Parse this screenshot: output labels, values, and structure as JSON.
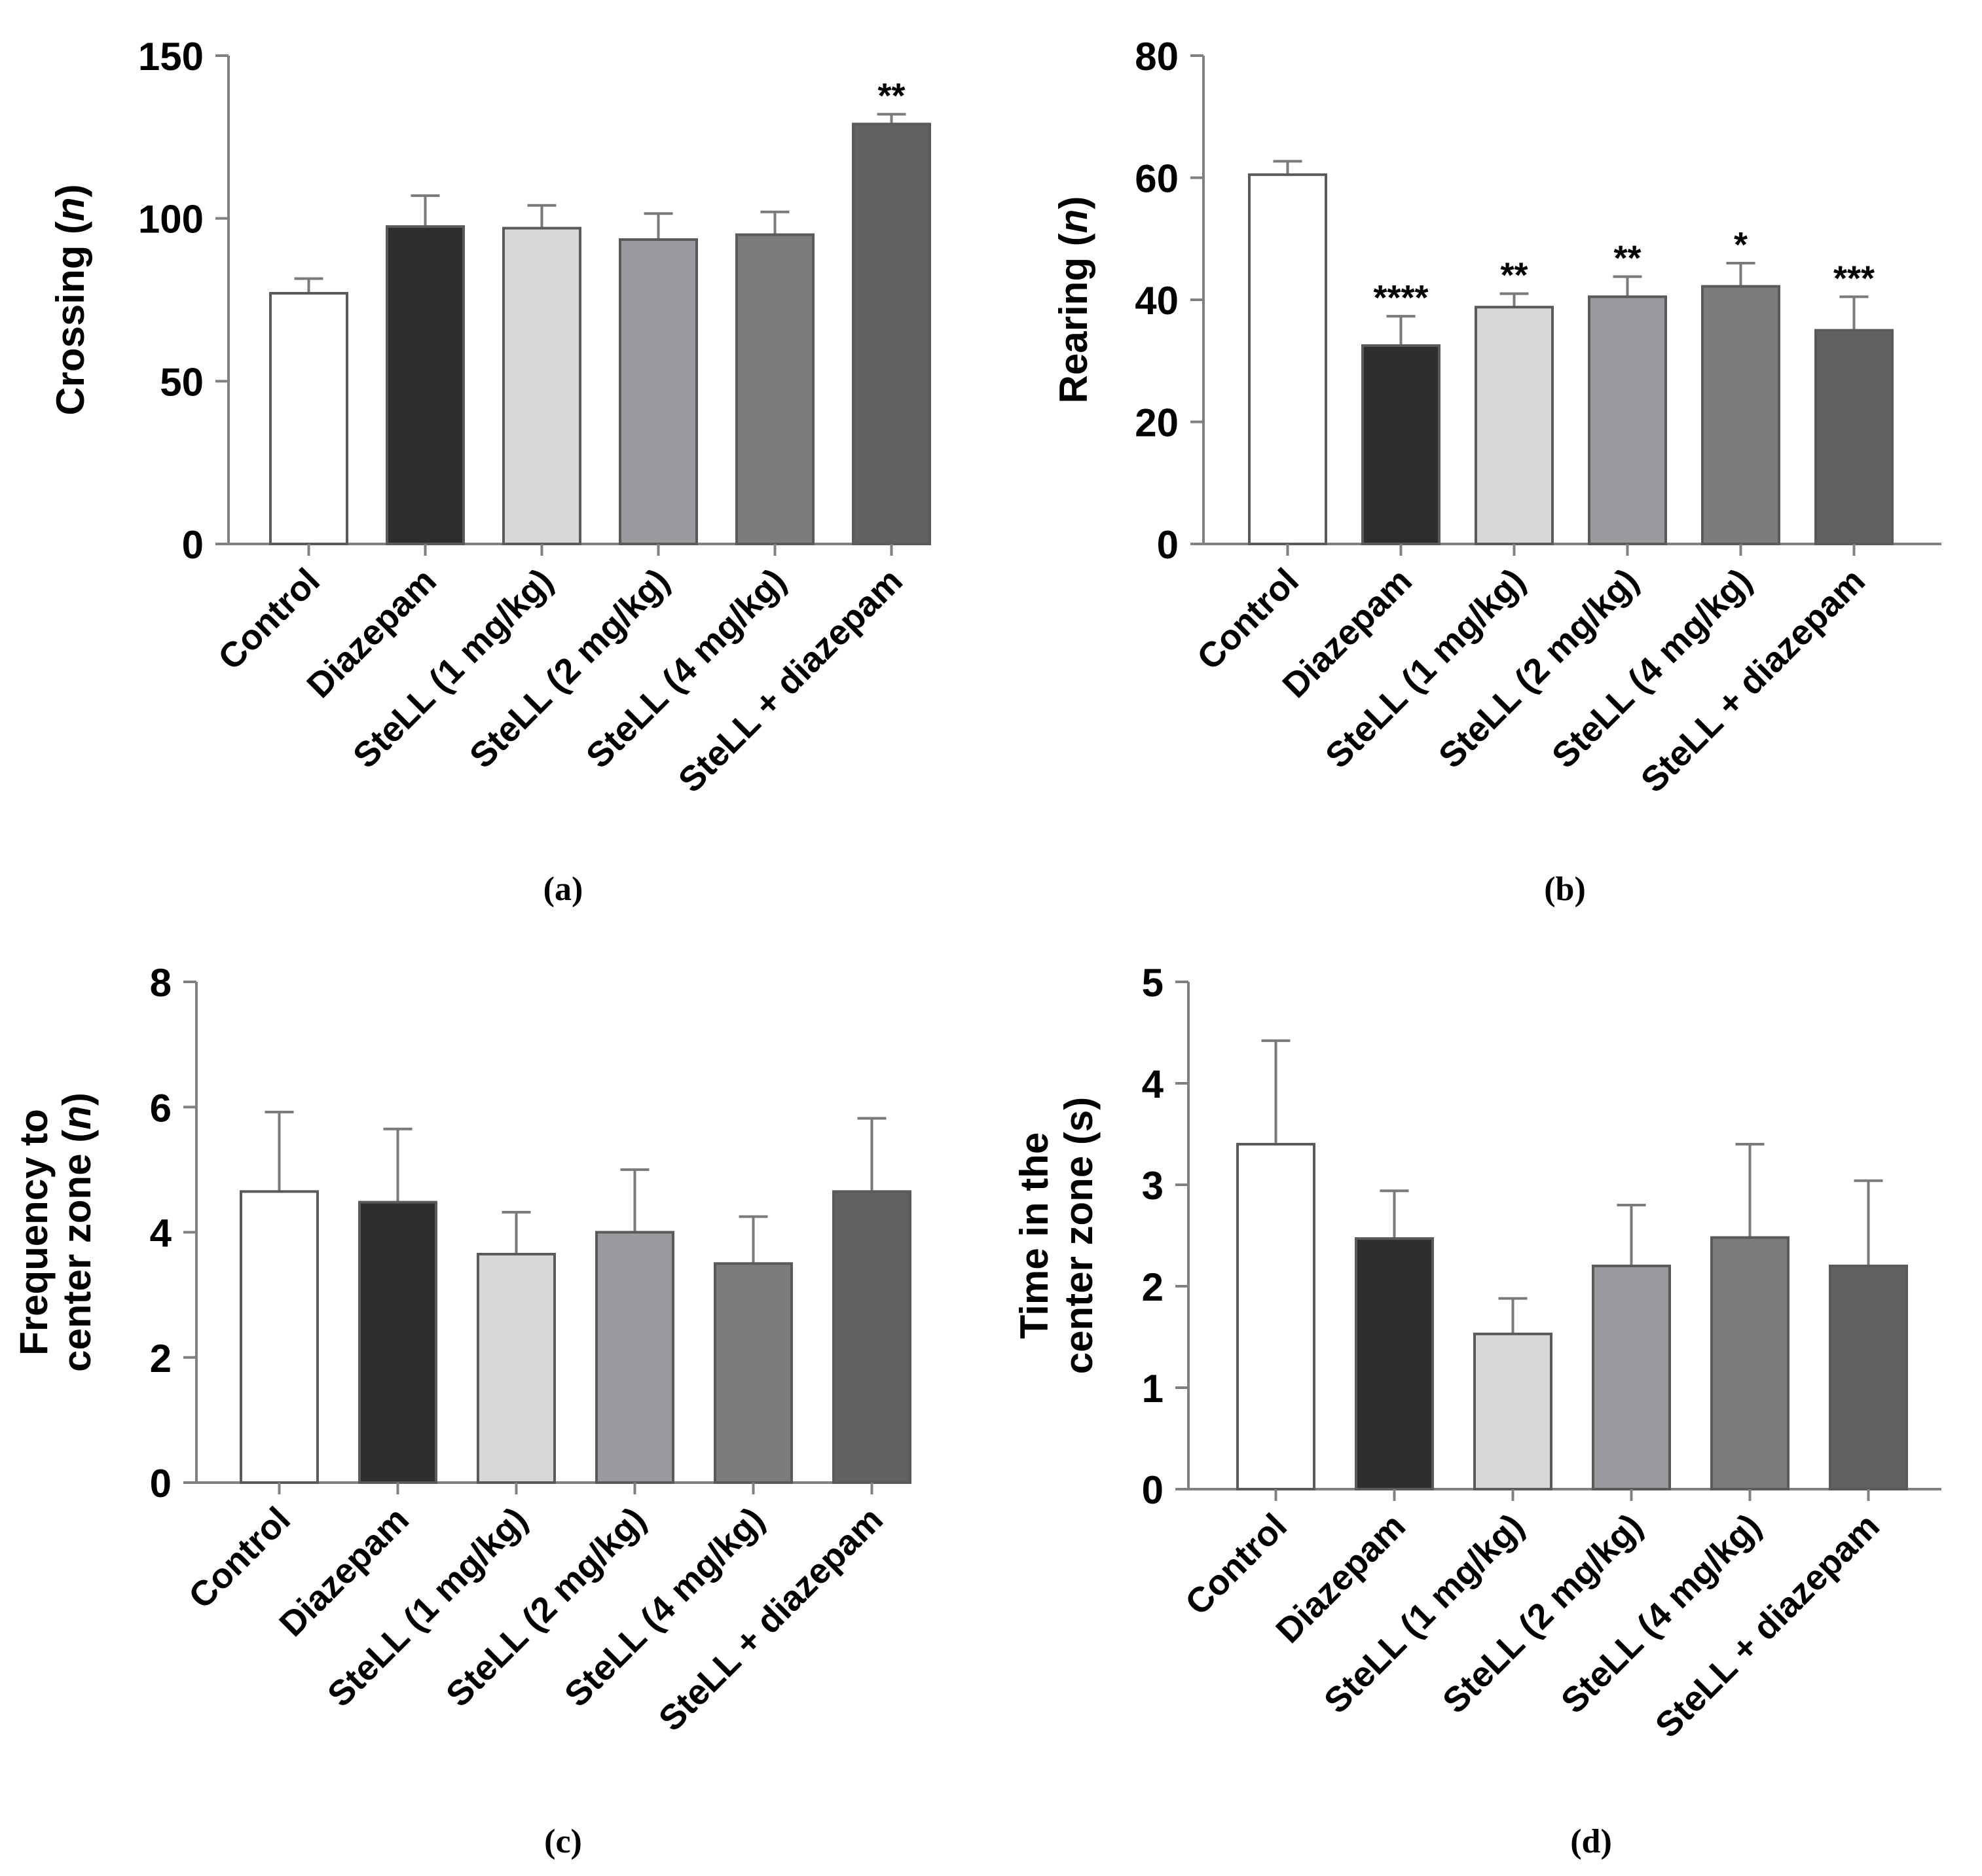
{
  "chart_data": [
    {
      "type": "bar",
      "panel_label": "(a)",
      "ylabel": "Crossing",
      "ylabel_unit": "n",
      "ylim": [
        0,
        150
      ],
      "yticks": [
        "0",
        "50",
        "100",
        "150"
      ],
      "categories": [
        "Control",
        "Diazepam",
        "SteLL (1 mg/kg)",
        "SteLL (2 mg/kg)",
        "SteLL (4 mg/kg)",
        "SteLL + diazepam"
      ],
      "values": [
        77,
        97.5,
        97,
        93.5,
        95,
        129
      ],
      "errors": [
        4.5,
        9.5,
        7,
        8,
        7,
        3
      ],
      "significance": [
        "",
        "",
        "",
        "",
        "",
        "**"
      ],
      "colors": [
        "#ffffff",
        "#2e2e2e",
        "#d8d8d8",
        "#9a9a9e",
        "#7c7c7c",
        "#616161"
      ]
    },
    {
      "type": "bar",
      "panel_label": "(b)",
      "ylabel": "Rearing",
      "ylabel_unit": "n",
      "ylim": [
        0,
        80
      ],
      "yticks": [
        "0",
        "20",
        "40",
        "60",
        "80"
      ],
      "categories": [
        "Control",
        "Diazepam",
        "SteLL (1 mg/kg)",
        "SteLL (2 mg/kg)",
        "SteLL (4 mg/kg)",
        "SteLL + diazepam"
      ],
      "values": [
        60.5,
        32.5,
        38.8,
        40.5,
        42.2,
        35
      ],
      "errors": [
        2.2,
        4.8,
        2.2,
        3.3,
        3.8,
        5.5
      ],
      "significance": [
        "",
        "****",
        "**",
        "**",
        "*",
        "***"
      ],
      "colors": [
        "#ffffff",
        "#2e2e2e",
        "#d8d8d8",
        "#9a9a9e",
        "#7c7c7c",
        "#616161"
      ]
    },
    {
      "type": "bar",
      "panel_label": "(c)",
      "ylabel_line1": "Frequency to",
      "ylabel_line2": "center zone",
      "ylabel_unit": "n",
      "ylim": [
        0,
        8
      ],
      "yticks": [
        "0",
        "2",
        "4",
        "6",
        "8"
      ],
      "categories": [
        "Control",
        "Diazepam",
        "SteLL (1 mg/kg)",
        "SteLL (2 mg/kg)",
        "SteLL (4 mg/kg)",
        "SteLL + diazepam"
      ],
      "values": [
        4.65,
        4.48,
        3.65,
        4.0,
        3.5,
        4.65
      ],
      "errors": [
        1.27,
        1.17,
        0.67,
        1.0,
        0.75,
        1.17
      ],
      "significance": [
        "",
        "",
        "",
        "",
        "",
        ""
      ],
      "colors": [
        "#ffffff",
        "#2e2e2e",
        "#d8d8d8",
        "#9a9a9e",
        "#7c7c7c",
        "#616161"
      ]
    },
    {
      "type": "bar",
      "panel_label": "(d)",
      "ylabel_line1": "Time in the",
      "ylabel_line2": "center zone (s)",
      "ylim": [
        0,
        5
      ],
      "yticks": [
        "0",
        "1",
        "2",
        "3",
        "4",
        "5"
      ],
      "categories": [
        "Control",
        "Diazepam",
        "SteLL (1 mg/kg)",
        "SteLL (2 mg/kg)",
        "SteLL (4 mg/kg)",
        "SteLL + diazepam"
      ],
      "values": [
        3.4,
        2.47,
        1.53,
        2.2,
        2.48,
        2.2
      ],
      "errors": [
        1.02,
        0.47,
        0.35,
        0.6,
        0.92,
        0.84
      ],
      "significance": [
        "",
        "",
        "",
        "",
        "",
        ""
      ],
      "colors": [
        "#ffffff",
        "#2e2e2e",
        "#d8d8d8",
        "#9a9a9e",
        "#7c7c7c",
        "#616161"
      ]
    }
  ]
}
